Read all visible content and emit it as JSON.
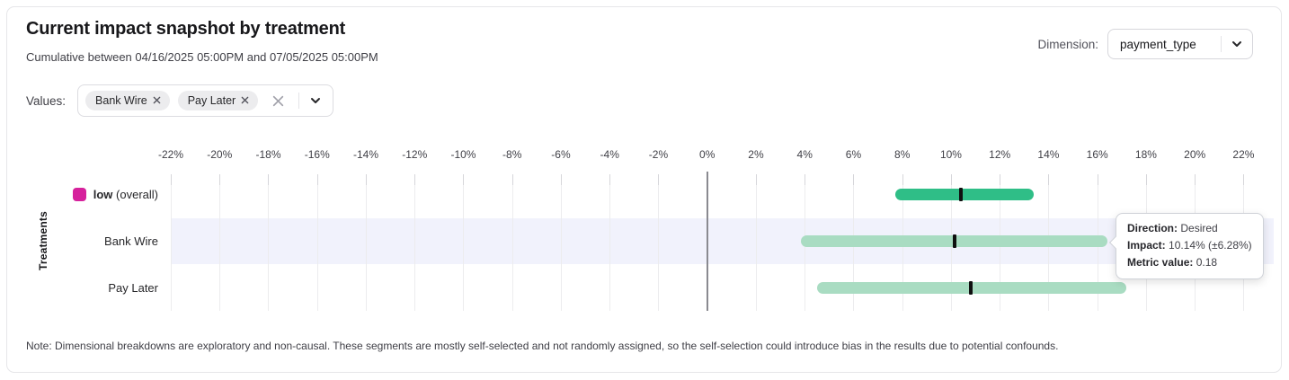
{
  "header": {
    "title": "Current impact snapshot by treatment",
    "subtitle": "Cumulative between 04/16/2025 05:00PM and 07/05/2025 05:00PM",
    "dimension_label": "Dimension:",
    "dimension_value": "payment_type"
  },
  "values_filter": {
    "label": "Values:",
    "chips": [
      {
        "label": "Bank Wire"
      },
      {
        "label": "Pay Later"
      }
    ]
  },
  "chart_data": {
    "type": "bar",
    "subtype": "horizontal-interval",
    "title": "Current impact snapshot by treatment",
    "xlabel": "",
    "ylabel": "Treatments",
    "x_unit": "%",
    "xlim": [
      -22,
      22.5
    ],
    "x_ticks": [
      -22,
      -20,
      -18,
      -16,
      -14,
      -12,
      -10,
      -8,
      -6,
      -4,
      -2,
      0,
      2,
      4,
      6,
      8,
      10,
      12,
      14,
      16,
      18,
      20,
      22
    ],
    "grid": true,
    "zero_line": true,
    "legend_position": "row-labels-left",
    "rows": [
      {
        "label": "low",
        "suffix": "(overall)",
        "swatch_color": "#d6219c",
        "bar_color": "#2fbe87",
        "impact_pct": 10.4,
        "ci_low_pct": 7.7,
        "ci_high_pct": 13.4,
        "highlighted": false
      },
      {
        "label": "Bank Wire",
        "suffix": "",
        "swatch_color": "",
        "bar_color": "#a9dcc2",
        "impact_pct": 10.14,
        "ci_low_pct": 3.86,
        "ci_high_pct": 16.42,
        "highlighted": true
      },
      {
        "label": "Pay Later",
        "suffix": "",
        "swatch_color": "",
        "bar_color": "#a9dcc2",
        "impact_pct": 10.8,
        "ci_low_pct": 4.5,
        "ci_high_pct": 17.2,
        "highlighted": false
      }
    ],
    "marker_color": "#101010"
  },
  "tooltip": {
    "target_row": "Bank Wire",
    "lines": [
      {
        "label": "Direction:",
        "value": "Desired"
      },
      {
        "label": "Impact:",
        "value": "10.14% (±6.28%)"
      },
      {
        "label": "Metric value:",
        "value": "0.18"
      }
    ]
  },
  "note": "Note: Dimensional breakdowns are exploratory and non-causal. These segments are mostly self-selected and not randomly assigned, so the self-selection could introduce bias in the results due to potential confounds.",
  "colors": {
    "accent_magenta": "#d6219c",
    "bar_dark_green": "#2fbe87",
    "bar_light_green": "#a9dcc2",
    "row_highlight": "#f1f2fc",
    "marker": "#101010",
    "zero_line": "#8a8a90",
    "gridline": "#ececee"
  }
}
